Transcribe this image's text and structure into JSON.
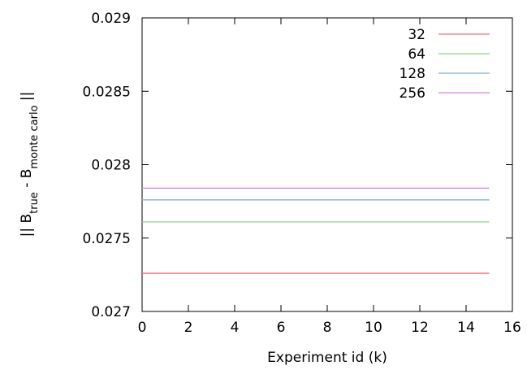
{
  "chart_data": {
    "type": "line",
    "xlabel": "Experiment id (k)",
    "ylabel": {
      "prefix": "|| B",
      "sub1": "true",
      "middle": " - B",
      "sub2": "monte carlo",
      "suffix": " ||"
    },
    "xlim": [
      0,
      16
    ],
    "ylim": [
      0.027,
      0.029
    ],
    "xticks": [
      "0",
      "2",
      "4",
      "6",
      "8",
      "10",
      "12",
      "14",
      "16"
    ],
    "yticks": [
      "0.027",
      "0.0275",
      "0.028",
      "0.0285",
      "0.029"
    ],
    "grid": false,
    "legend_position": "top-right",
    "series": [
      {
        "name": "32",
        "color": "#f07070",
        "x": [
          0,
          15
        ],
        "y": [
          0.02726,
          0.02726
        ]
      },
      {
        "name": "64",
        "color": "#8cd08c",
        "x": [
          0,
          15
        ],
        "y": [
          0.02761,
          0.02761
        ]
      },
      {
        "name": "128",
        "color": "#7ab0d8",
        "x": [
          0,
          15
        ],
        "y": [
          0.02776,
          0.02776
        ]
      },
      {
        "name": "256",
        "color": "#d880e0",
        "x": [
          0,
          15
        ],
        "y": [
          0.02784,
          0.02784
        ]
      }
    ]
  }
}
